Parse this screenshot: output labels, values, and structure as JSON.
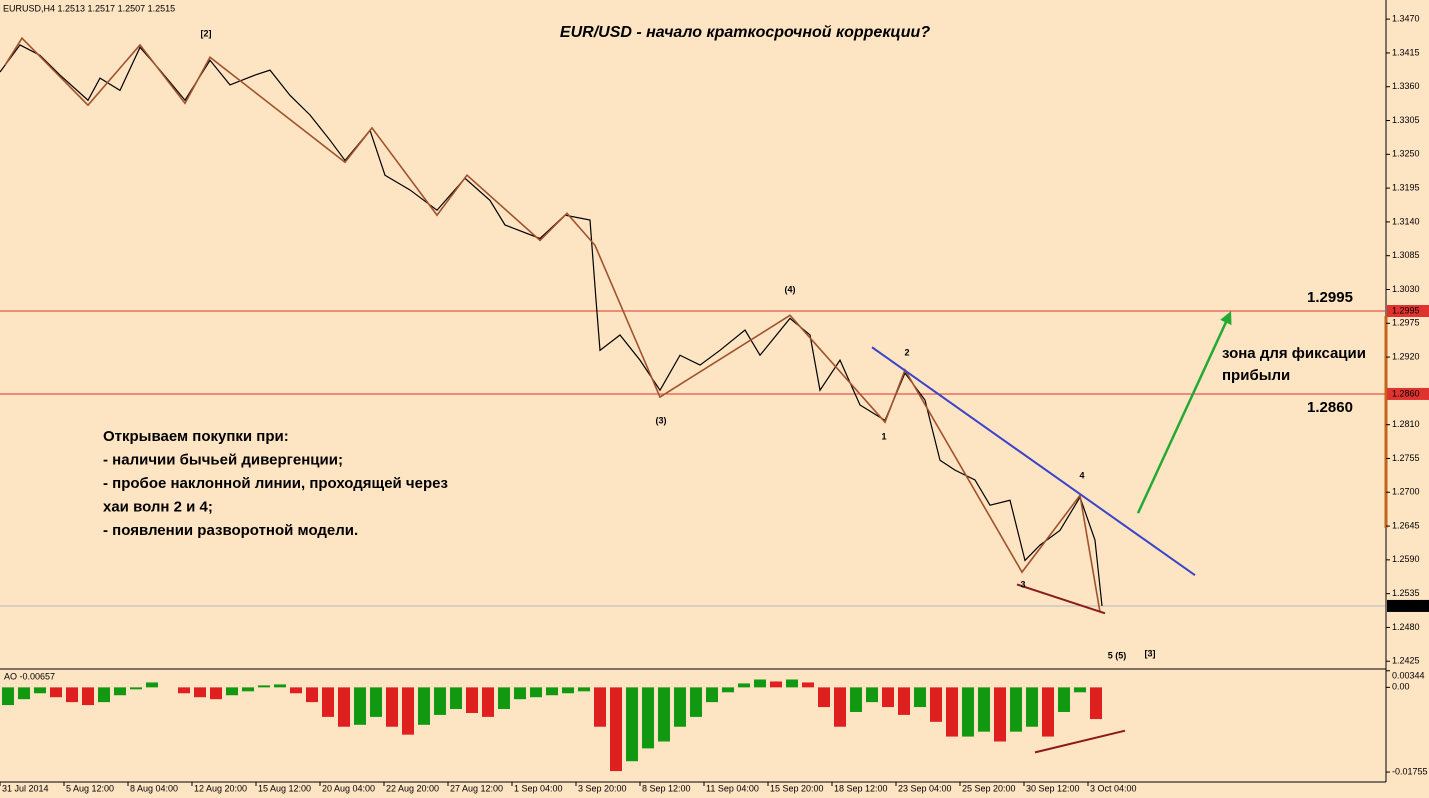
{
  "chart_data": [
    {
      "type": "line",
      "title": "EUR/USD - начало краткосрочной коррекции?",
      "header": "EURUSD,H4  1.2513 1.2517 1.2507 1.2515",
      "xlim": [
        0,
        346.25
      ],
      "ylim": [
        1.2414,
        1.3493
      ],
      "yticks": [
        {
          "value": 1.347,
          "label": "1.3470"
        },
        1.3415,
        {
          "value": 1.336,
          "label": "1.3360"
        },
        1.3305,
        {
          "value": 1.325,
          "label": "1.3250"
        },
        1.3195,
        {
          "value": 1.314,
          "label": "1.3140"
        },
        1.3085,
        {
          "value": 1.303,
          "label": "1.3030"
        },
        1.2975,
        {
          "value": 1.292,
          "label": "1.2920"
        },
        {
          "value": 1.281,
          "label": "1.2810"
        },
        1.2755,
        {
          "value": 1.27,
          "label": "1.2700"
        },
        1.2645,
        {
          "value": 1.259,
          "label": "1.2590"
        },
        1.2535,
        {
          "value": 1.248,
          "label": "1.2480"
        },
        1.2425
      ],
      "price": {
        "color": "#000000",
        "x": [
          0,
          5,
          10,
          15,
          22,
          25,
          30,
          35,
          40,
          46.25,
          52.5,
          57.5,
          63.75,
          67.5,
          72.5,
          77.5,
          82.5,
          86.25,
          92.5,
          96.25,
          102.5,
          109.25,
          116.25,
          122.5,
          126.25,
          135,
          141.25,
          147.5,
          149,
          150,
          155,
          160,
          165,
          170,
          175,
          180,
          186.25,
          190,
          197.5,
          202.5,
          205,
          210,
          215,
          221.25,
          226.25,
          231.25,
          235,
          238.75,
          243.75,
          247.5,
          252.5,
          256.25,
          260,
          265,
          270,
          273.75,
          275.5
        ],
        "values": [
          1.3384,
          1.3428,
          1.3411,
          1.3379,
          1.3338,
          1.3374,
          1.3354,
          1.3424,
          1.3387,
          1.3338,
          1.3403,
          1.3363,
          1.3379,
          1.3387,
          1.3346,
          1.3314,
          1.3273,
          1.324,
          1.3289,
          1.3216,
          1.3192,
          1.3159,
          1.3211,
          1.3175,
          1.3135,
          1.3113,
          1.3151,
          1.3143,
          1.3013,
          1.2931,
          1.2956,
          1.2915,
          1.2866,
          1.2923,
          1.2907,
          1.2931,
          1.2964,
          1.2923,
          1.2983,
          1.2956,
          1.2866,
          1.2915,
          1.2842,
          1.2817,
          1.2894,
          1.285,
          1.2752,
          1.2736,
          1.272,
          1.2679,
          1.2687,
          1.2589,
          1.2614,
          1.2638,
          1.2692,
          1.2622,
          1.2515
        ]
      },
      "zigzag": {
        "color": "#a0522d",
        "x": [
          1.25,
          5.5,
          22,
          35,
          46.25,
          52.5,
          86.25,
          93,
          109.25,
          116.75,
          135,
          141.75,
          148.75,
          165,
          197.5,
          221.25,
          226.25,
          255.5,
          270,
          275
        ],
        "values": [
          1.3395,
          1.3439,
          1.333,
          1.3428,
          1.3333,
          1.3408,
          1.3237,
          1.3293,
          1.3151,
          1.3216,
          1.311,
          1.3154,
          1.3102,
          1.2855,
          1.2988,
          1.2814,
          1.2899,
          1.257,
          1.2695,
          1.2505
        ]
      },
      "trendline": {
        "color": "#3b44c8",
        "x": [
          218,
          298.75
        ],
        "values": [
          1.2936,
          1.2565
        ]
      },
      "arrow": {
        "color": "#22aa33",
        "x": [
          284.5,
          307.5
        ],
        "values": [
          1.2666,
          1.2991
        ]
      },
      "divergence": {
        "color": "#8b1a1a",
        "x": [
          254.25,
          276.25
        ],
        "values": [
          1.255,
          1.2503
        ]
      },
      "level_color": "#e0322f",
      "levels": [
        1.2995,
        {
          "value": 1.286,
          "label": "1.2860"
        }
      ],
      "current_price": 1.2515,
      "wave_labels": [
        "[2]",
        "(4)",
        "(3)",
        "2",
        "1",
        "4",
        "3",
        "5 (5)",
        "[3]"
      ],
      "zone_label": [
        "зона для фиксации",
        "прибыли"
      ],
      "text_block": [
        "Открываем покупки при:",
        "- наличии бычьей дивергенции;",
        "- пробое наклонной линии, проходящей через",
        "хаи волн 2 и 4;",
        "- появлении разворотной модели."
      ]
    },
    {
      "type": "bar",
      "title": "AO -0.00657",
      "xlim": [
        0,
        346.25
      ],
      "ylim": [
        -0.0192,
        0.0036
      ],
      "yticks": [
        0.00344,
        {
          "value": 0,
          "label": "0.00"
        },
        -0.01755
      ],
      "xticks": [
        {
          "value": 0,
          "label": "31 Jul 2014"
        },
        {
          "value": 16,
          "label": "5 Aug 12:00"
        },
        {
          "value": 32,
          "label": "8 Aug 04:00"
        },
        {
          "value": 48,
          "label": "12 Aug 20:00"
        },
        {
          "value": 64,
          "label": "15 Aug 12:00"
        },
        {
          "value": 80,
          "label": "20 Aug 04:00"
        },
        {
          "value": 96,
          "label": "22 Aug 20:00"
        },
        {
          "value": 112,
          "label": "27 Aug 12:00"
        },
        {
          "value": 128,
          "label": "1 Sep 04:00"
        },
        {
          "value": 144,
          "label": "3 Sep 20:00"
        },
        {
          "value": 160,
          "label": "8 Sep 12:00"
        },
        {
          "value": 176,
          "label": "11 Sep 04:00"
        },
        {
          "value": 192,
          "label": "15 Sep 20:00"
        },
        {
          "value": 208,
          "label": "18 Sep 12:00"
        },
        {
          "value": 224,
          "label": "23 Sep 04:00"
        },
        {
          "value": 240,
          "label": "25 Sep 20:00"
        },
        {
          "value": 256,
          "label": "30 Sep 12:00"
        },
        {
          "value": 272,
          "label": "3 Oct 04:00"
        }
      ],
      "up_color": "#119911",
      "down_color": "#e02020",
      "x": [
        2,
        6,
        10,
        14,
        18,
        22,
        26,
        30,
        34,
        38,
        42,
        46,
        50,
        54,
        58,
        62,
        66,
        70,
        74,
        78,
        82,
        86,
        90,
        94,
        98,
        102,
        106,
        110,
        114,
        118,
        122,
        126,
        130,
        134,
        138,
        142,
        146,
        150,
        154,
        158,
        162,
        166,
        170,
        174,
        178,
        182,
        186,
        190,
        194,
        198,
        202,
        206,
        210,
        214,
        218,
        222,
        226,
        230,
        234,
        238,
        242,
        246,
        250,
        254,
        258,
        262,
        266,
        270,
        274
      ],
      "values": [
        -0.00367,
        -0.00245,
        -0.00122,
        -0.00204,
        -0.00306,
        -0.00367,
        -0.00306,
        -0.00163,
        -0.00041,
        0.00102,
        0,
        -0.00122,
        -0.00204,
        -0.00245,
        -0.00163,
        -0.00082,
        0.00041,
        0.00061,
        -0.00122,
        -0.00306,
        -0.00612,
        -0.00816,
        -0.00776,
        -0.00612,
        -0.00816,
        -0.0098,
        -0.00776,
        -0.00571,
        -0.00449,
        -0.00531,
        -0.00612,
        -0.00449,
        -0.00245,
        -0.00204,
        -0.00163,
        -0.00122,
        -0.00082,
        -0.00816,
        -0.01735,
        -0.01531,
        -0.01265,
        -0.01122,
        -0.00816,
        -0.00612,
        -0.00306,
        -0.00102,
        0.00082,
        0.00163,
        0.00122,
        0.00163,
        0.00102,
        -0.00408,
        -0.00816,
        -0.0051,
        -0.00306,
        -0.00408,
        -0.00571,
        -0.00408,
        -0.00714,
        -0.0102,
        -0.0102,
        -0.00918,
        -0.01122,
        -0.00918,
        -0.00816,
        -0.0102,
        -0.0051,
        -0.00102,
        -0.00657
      ],
      "divergence": {
        "color": "#8b1a1a",
        "x": [
          258.75,
          281.25
        ],
        "values": [
          -0.01347,
          -0.00898
        ]
      }
    }
  ]
}
